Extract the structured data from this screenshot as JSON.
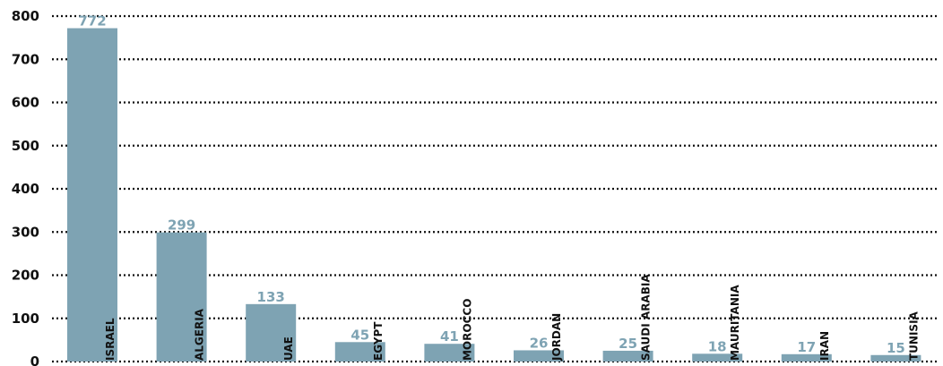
{
  "colors": {
    "bar": "#7ea3b3",
    "value_label": "#7ea3b3",
    "grid": "#111111",
    "text": "#111111"
  },
  "chart_data": {
    "type": "bar",
    "categories": [
      "ISRAEL",
      "ALGERIA",
      "UAE",
      "EGYPT",
      "MOROCCO",
      "JORDAN",
      "SAUDI ARABIA",
      "MAURITANIA",
      "IRAN",
      "TUNISIA"
    ],
    "values": [
      772,
      299,
      133,
      45,
      41,
      26,
      25,
      18,
      17,
      15
    ],
    "value_labels": [
      "772",
      "299",
      "133",
      "45",
      "41",
      "26",
      "25",
      "18",
      "17",
      "15"
    ],
    "yticks": [
      "0",
      "100",
      "200",
      "300",
      "400",
      "500",
      "600",
      "700",
      "800"
    ],
    "ylim": [
      0,
      800
    ],
    "grid": "dotted horizontal",
    "title": "",
    "xlabel": "",
    "ylabel": ""
  }
}
